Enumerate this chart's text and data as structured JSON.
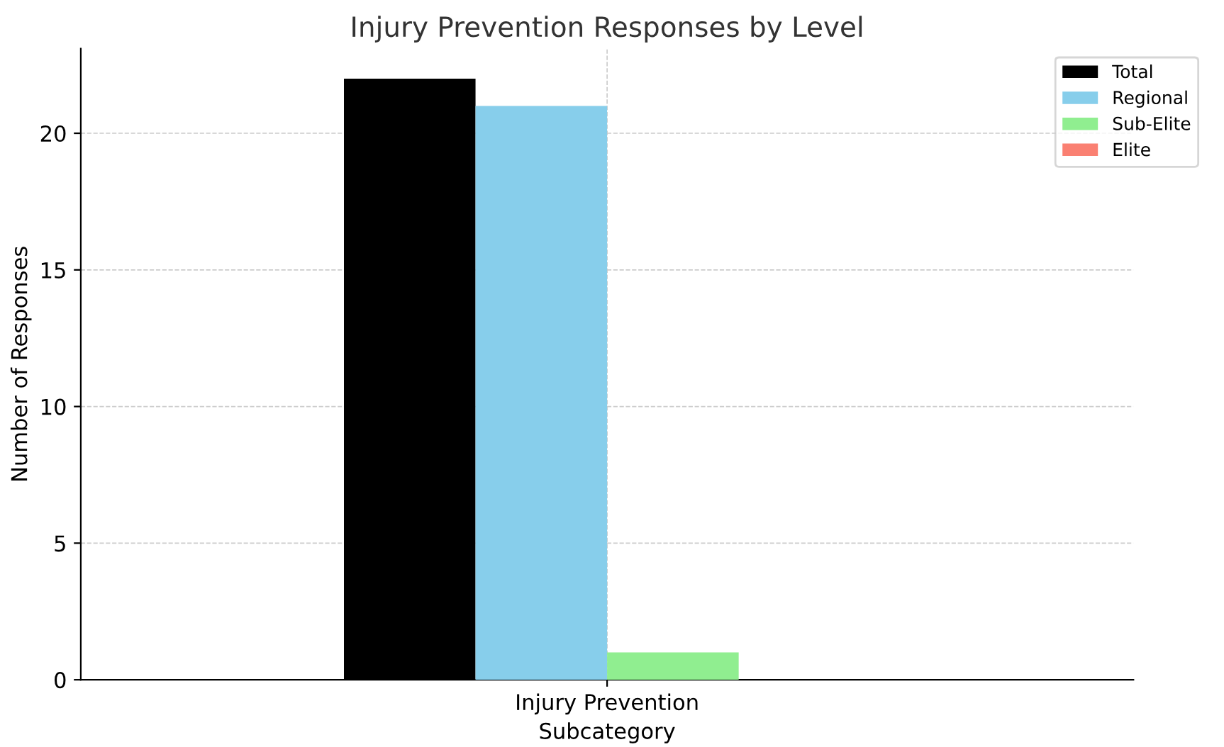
{
  "chart_data": {
    "type": "bar",
    "title": "Injury Prevention Responses by Level",
    "xlabel": "Subcategory",
    "ylabel": "Number of Responses",
    "categories": [
      "Injury Prevention"
    ],
    "series": [
      {
        "name": "Total",
        "color": "#000000",
        "values": [
          22
        ]
      },
      {
        "name": "Regional",
        "color": "#87ceeb",
        "values": [
          21
        ]
      },
      {
        "name": "Sub-Elite",
        "color": "#90ee90",
        "values": [
          1
        ]
      },
      {
        "name": "Elite",
        "color": "#fa8072",
        "values": [
          0
        ]
      }
    ],
    "ylim": [
      0,
      23.1
    ],
    "yticks": [
      0,
      5,
      10,
      15,
      20
    ],
    "grid": true,
    "legend": "top right"
  }
}
